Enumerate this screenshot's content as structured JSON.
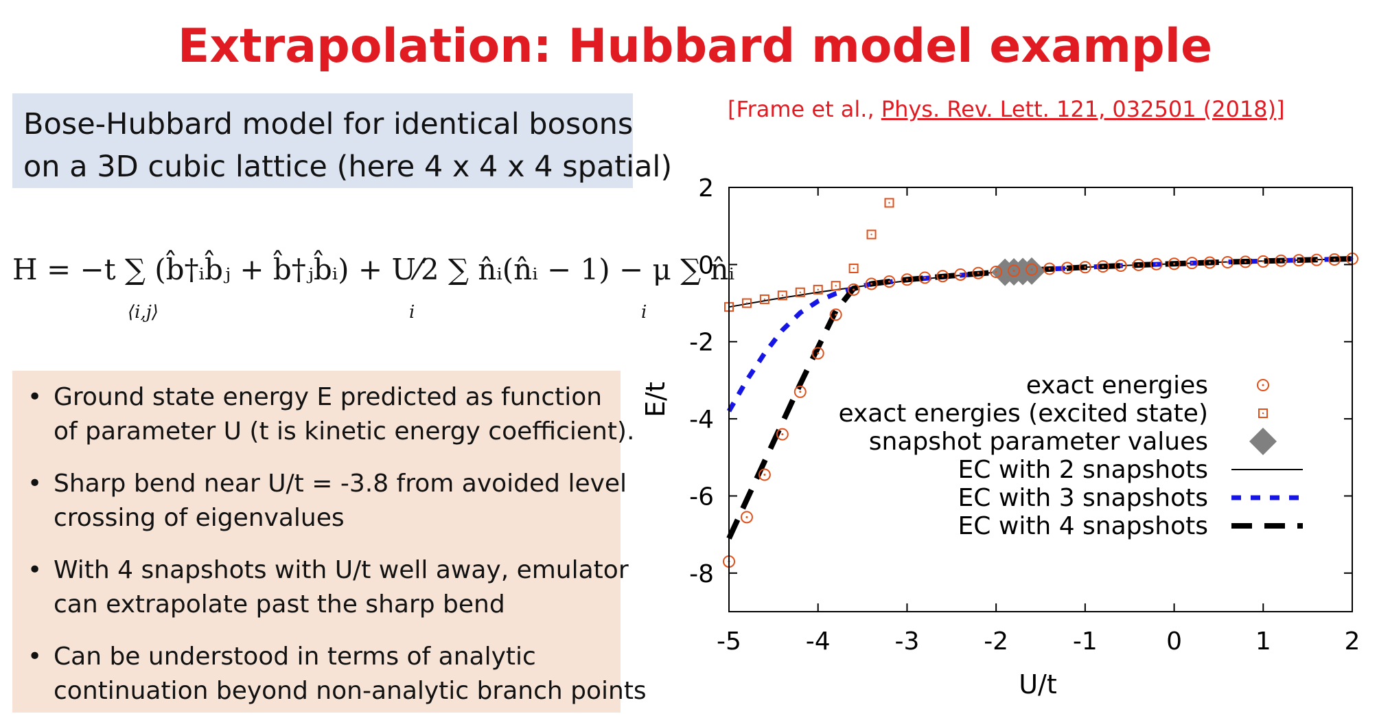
{
  "title": "Extrapolation: Hubbard model example",
  "model_box": {
    "line1": "Bose-Hubbard model for identical bosons",
    "line2": "on a 3D cubic lattice (here 4 x 4 x 4 spatial)"
  },
  "equation": {
    "main": "H = −t ∑ (b̂†ᵢb̂ⱼ + b̂†ⱼb̂ᵢ) + U⁄2 ∑ n̂ᵢ(n̂ᵢ − 1) − μ ∑ n̂ᵢ",
    "sub1": "⟨i,j⟩",
    "sub2": "i",
    "sub3": "i"
  },
  "bullets": [
    {
      "line1": "Ground state energy E predicted as function",
      "line2": "of parameter U (t is kinetic energy coefficient)."
    },
    {
      "line1": "Sharp bend near U/t = -3.8 from avoided level",
      "line2": "crossing of eigenvalues"
    },
    {
      "line1": "With 4 snapshots with U/t well away, emulator",
      "line2": "can extrapolate past the sharp bend"
    },
    {
      "line1": "Can be understood in terms of analytic",
      "line2": "continuation beyond non-analytic branch points"
    }
  ],
  "citation": {
    "prefix": "[Frame et al., ",
    "link": "Phys. Rev. Lett. 121, 032501 (2018)",
    "suffix": "]"
  },
  "chart_data": {
    "type": "scatter",
    "xlabel": "U/t",
    "ylabel": "E/t",
    "xlim": [
      -5,
      2
    ],
    "ylim": [
      -9,
      2
    ],
    "xticks": [
      -5,
      -4,
      -3,
      -2,
      -1,
      0,
      1,
      2
    ],
    "yticks": [
      -8,
      -6,
      -4,
      -2,
      0,
      2
    ],
    "grid": false,
    "legend_position": "right",
    "colors": {
      "exact": "#e0501a",
      "snapshot": "#808080",
      "ec2": "#000000",
      "ec3": "#1515e6",
      "ec4": "#000000"
    },
    "series": [
      {
        "name": "exact energies",
        "marker": "circle",
        "x": [
          -5.0,
          -4.8,
          -4.6,
          -4.4,
          -4.2,
          -4.0,
          -3.8,
          -3.6,
          -3.4,
          -3.2,
          -3.0,
          -2.8,
          -2.6,
          -2.4,
          -2.2,
          -2.0,
          -1.8,
          -1.6,
          -1.4,
          -1.2,
          -1.0,
          -0.8,
          -0.6,
          -0.4,
          -0.2,
          0.0,
          0.2,
          0.4,
          0.6,
          0.8,
          1.0,
          1.2,
          1.4,
          1.6,
          1.8,
          2.0
        ],
        "y": [
          -7.7,
          -6.55,
          -5.45,
          -4.4,
          -3.3,
          -2.3,
          -1.3,
          -0.65,
          -0.5,
          -0.44,
          -0.39,
          -0.34,
          -0.3,
          -0.26,
          -0.22,
          -0.19,
          -0.16,
          -0.13,
          -0.11,
          -0.09,
          -0.07,
          -0.05,
          -0.03,
          -0.01,
          0.01,
          0.02,
          0.04,
          0.05,
          0.06,
          0.07,
          0.08,
          0.1,
          0.11,
          0.12,
          0.13,
          0.15
        ]
      },
      {
        "name": "exact energies (excited state)",
        "marker": "square",
        "x": [
          -5.0,
          -4.8,
          -4.6,
          -4.4,
          -4.2,
          -4.0,
          -3.8,
          -3.6,
          -3.4,
          -3.2
        ],
        "y": [
          -1.1,
          -1.0,
          -0.9,
          -0.8,
          -0.72,
          -0.65,
          -0.55,
          -0.1,
          0.78,
          1.6
        ]
      },
      {
        "name": "snapshot parameter values",
        "marker": "diamond",
        "x": [
          -1.9,
          -1.8,
          -1.7,
          -1.6
        ],
        "y": [
          -0.2,
          -0.19,
          -0.18,
          -0.17
        ]
      },
      {
        "name": "EC with 2 snapshots",
        "style": "solid-thin",
        "x": [
          -5.0,
          -4.5,
          -4.0,
          -3.5,
          -3.0,
          -2.5,
          -2.0,
          -1.5,
          -1.0,
          -0.5,
          0.0,
          0.5,
          1.0,
          1.5,
          2.0
        ],
        "y": [
          -1.1,
          -0.9,
          -0.72,
          -0.56,
          -0.42,
          -0.3,
          -0.2,
          -0.13,
          -0.07,
          -0.02,
          0.02,
          0.06,
          0.09,
          0.12,
          0.15
        ]
      },
      {
        "name": "EC with 3 snapshots",
        "style": "dashed-blue",
        "x": [
          -5.0,
          -4.8,
          -4.6,
          -4.4,
          -4.2,
          -4.0,
          -3.8,
          -3.6,
          -3.4,
          -3.0,
          -2.5,
          -2.0,
          -1.5,
          -1.0,
          -0.5,
          0.0,
          0.5,
          1.0,
          1.5,
          2.0
        ],
        "y": [
          -3.8,
          -3.0,
          -2.3,
          -1.7,
          -1.25,
          -0.95,
          -0.75,
          -0.62,
          -0.5,
          -0.4,
          -0.3,
          -0.2,
          -0.13,
          -0.07,
          -0.02,
          0.02,
          0.06,
          0.09,
          0.12,
          0.15
        ]
      },
      {
        "name": "EC with 4 snapshots",
        "style": "dashed-thick",
        "x": [
          -5.0,
          -4.8,
          -4.6,
          -4.4,
          -4.2,
          -4.0,
          -3.8,
          -3.6,
          -3.4,
          -3.2,
          -3.0,
          -2.5,
          -2.0,
          -1.5,
          -1.0,
          -0.5,
          0.0,
          0.5,
          1.0,
          1.5,
          2.0
        ],
        "y": [
          -7.1,
          -6.1,
          -5.1,
          -4.1,
          -3.1,
          -2.15,
          -1.2,
          -0.62,
          -0.5,
          -0.44,
          -0.39,
          -0.29,
          -0.2,
          -0.13,
          -0.07,
          -0.02,
          0.02,
          0.06,
          0.09,
          0.12,
          0.15
        ]
      }
    ]
  }
}
